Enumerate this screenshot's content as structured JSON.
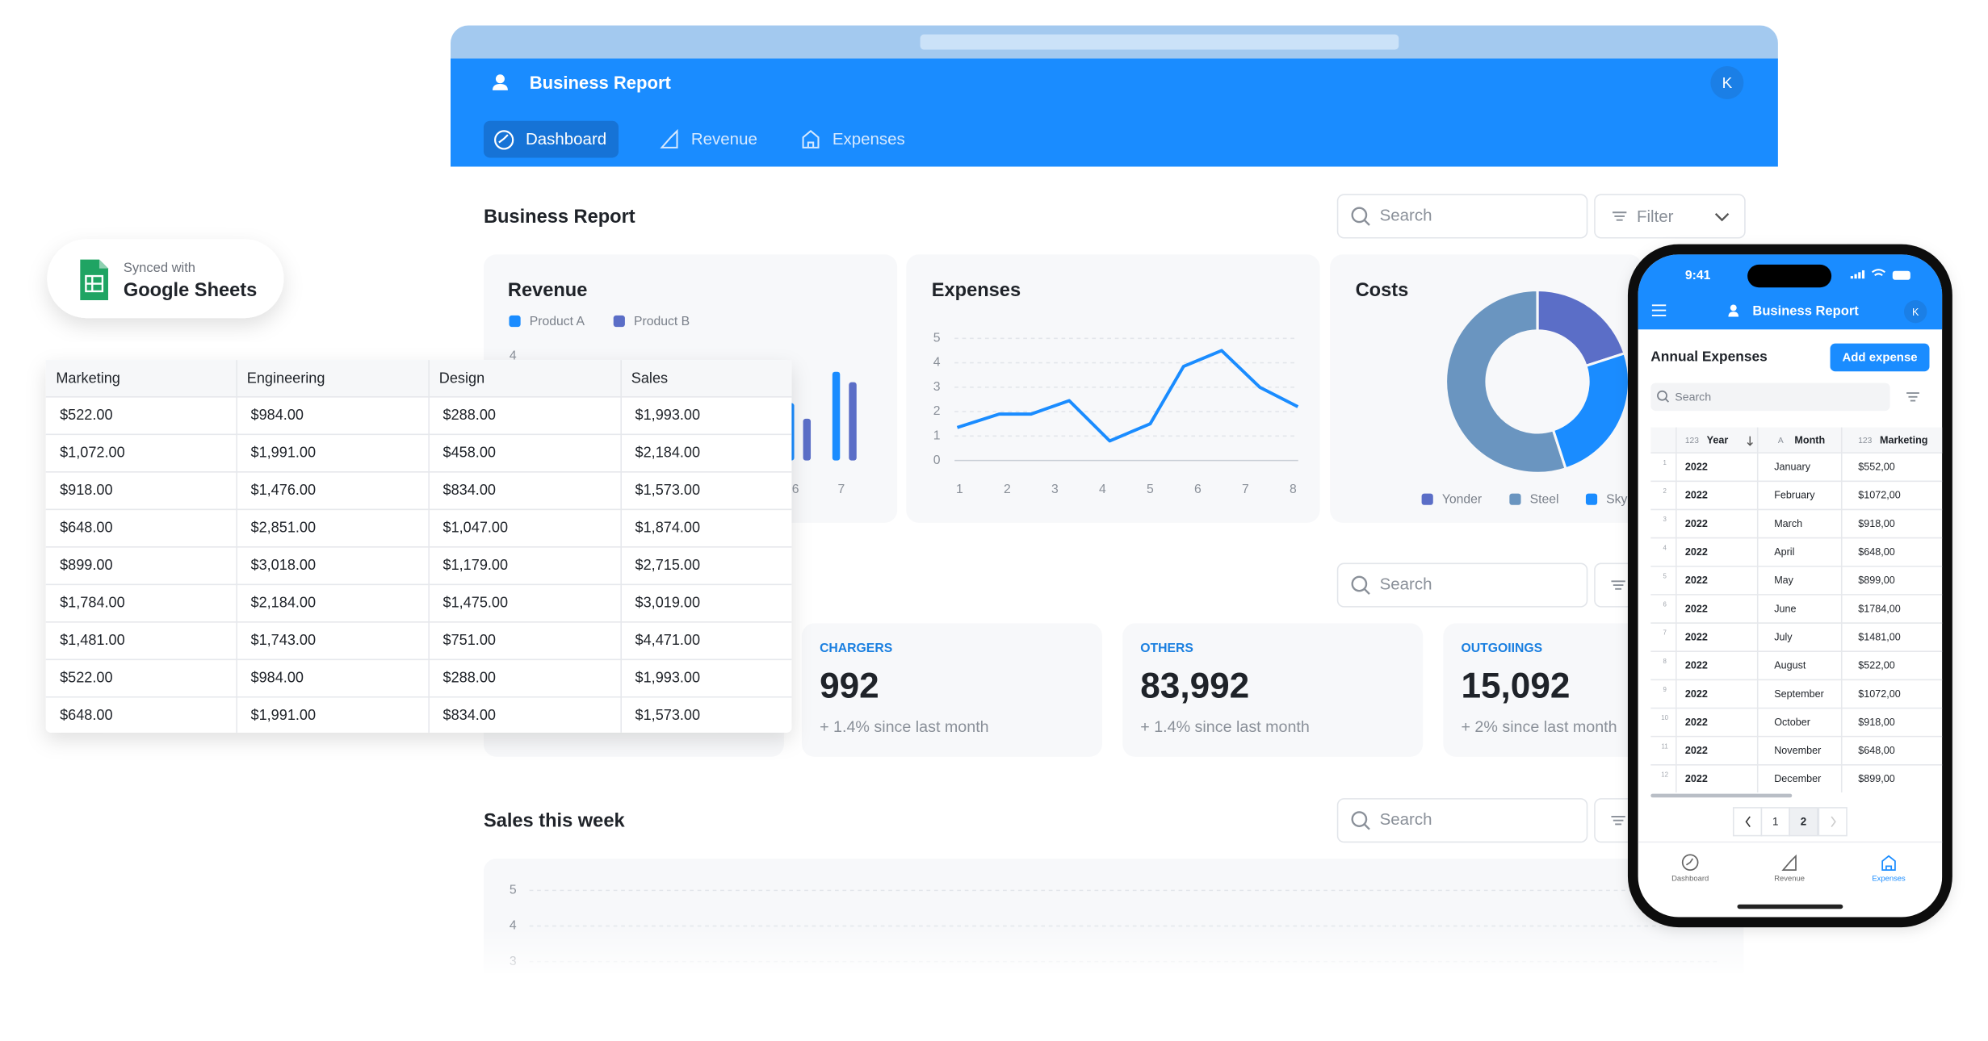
{
  "badge": {
    "caption": "Synced with",
    "title": "Google Sheets"
  },
  "app": {
    "title": "Business Report",
    "avatar": "K",
    "tabs": [
      "Dashboard",
      "Revenue",
      "Expenses"
    ],
    "active_tab": 0
  },
  "report": {
    "title": "Business Report",
    "search": "Search",
    "filter": "Filter"
  },
  "revenue": {
    "type": "bar",
    "title": "Revenue",
    "categories": [
      "6",
      "7"
    ],
    "series": [
      {
        "name": "Product A",
        "color": "#1a8cff",
        "values": [
          2.2,
          3.4
        ]
      },
      {
        "name": "Product B",
        "color": "#5b6ec7",
        "values": [
          1.6,
          3.0
        ]
      }
    ],
    "ylim": [
      0,
      4
    ],
    "yticks": [
      4
    ]
  },
  "expenses": {
    "type": "line",
    "title": "Expenses",
    "x": [
      0.95,
      1.83,
      2.5,
      3.3,
      4.15,
      5.0,
      5.7,
      6.5,
      7.3,
      8.1
    ],
    "values": [
      1.35,
      1.9,
      1.9,
      2.45,
      0.8,
      1.5,
      3.85,
      4.5,
      3.0,
      2.2
    ],
    "color": "#1a8cff",
    "xlim": [
      1,
      8
    ],
    "xticks": [
      1,
      2,
      3,
      4,
      5,
      6,
      7,
      8
    ],
    "ylim": [
      0,
      5
    ],
    "yticks": [
      0,
      1,
      2,
      3,
      4,
      5
    ],
    "grid": true
  },
  "costs": {
    "type": "pie",
    "title": "Costs",
    "categories": [
      "Yonder",
      "Steel",
      "Sky"
    ],
    "values": [
      20,
      55,
      25
    ],
    "colors": [
      "#5b6ec7",
      "#6a95c0",
      "#1a8cff"
    ]
  },
  "section2": {
    "search": "Search"
  },
  "stats": [
    {
      "label": "CHARGERS",
      "value": "992",
      "change": "+ 1.4% since last month"
    },
    {
      "label": "OTHERS",
      "value": "83,992",
      "change": "+ 1.4% since last month"
    },
    {
      "label": "OUTGOIINGS",
      "value": "15,092",
      "change": "+ 2% since last month"
    }
  ],
  "sales": {
    "type": "line",
    "title": "Sales this week",
    "search": "Search",
    "ylim": [
      0,
      5
    ],
    "yticks": [
      5,
      4,
      3
    ],
    "grid": true
  },
  "sheet": {
    "columns": [
      "Marketing",
      "Engineering",
      "Design",
      "Sales"
    ],
    "rows": [
      [
        "$522.00",
        "$984.00",
        "$288.00",
        "$1,993.00"
      ],
      [
        "$1,072.00",
        "$1,991.00",
        "$458.00",
        "$2,184.00"
      ],
      [
        "$918.00",
        "$1,476.00",
        "$834.00",
        "$1,573.00"
      ],
      [
        "$648.00",
        "$2,851.00",
        "$1,047.00",
        "$1,874.00"
      ],
      [
        "$899.00",
        "$3,018.00",
        "$1,179.00",
        "$2,715.00"
      ],
      [
        "$1,784.00",
        "$2,184.00",
        "$1,475.00",
        "$3,019.00"
      ],
      [
        "$1,481.00",
        "$1,743.00",
        "$751.00",
        "$4,471.00"
      ],
      [
        "$522.00",
        "$984.00",
        "$288.00",
        "$1,993.00"
      ],
      [
        "$648.00",
        "$1,991.00",
        "$834.00",
        "$1,573.00"
      ]
    ]
  },
  "phone": {
    "time": "9:41",
    "title": "Business Report",
    "avatar": "K",
    "heading": "Annual Expenses",
    "button": "Add expense",
    "search": "Search",
    "columns": [
      {
        "type": "123",
        "name": "Year"
      },
      {
        "type": "A",
        "name": "Month"
      },
      {
        "type": "123",
        "name": "Marketing"
      }
    ],
    "rows": [
      [
        "1",
        "2022",
        "January",
        "$552,00"
      ],
      [
        "2",
        "2022",
        "February",
        "$1072,00"
      ],
      [
        "3",
        "2022",
        "March",
        "$918,00"
      ],
      [
        "4",
        "2022",
        "April",
        "$648,00"
      ],
      [
        "5",
        "2022",
        "May",
        "$899,00"
      ],
      [
        "6",
        "2022",
        "June",
        "$1784,00"
      ],
      [
        "7",
        "2022",
        "July",
        "$1481,00"
      ],
      [
        "8",
        "2022",
        "August",
        "$522,00"
      ],
      [
        "9",
        "2022",
        "September",
        "$1072,00"
      ],
      [
        "10",
        "2022",
        "October",
        "$918,00"
      ],
      [
        "11",
        "2022",
        "November",
        "$648,00"
      ],
      [
        "12",
        "2022",
        "December",
        "$899,00"
      ]
    ],
    "pages": [
      "1",
      "2"
    ],
    "current_page": 1,
    "tabs": [
      "Dashboard",
      "Revenue",
      "Expenses"
    ],
    "active_tab": 2
  }
}
